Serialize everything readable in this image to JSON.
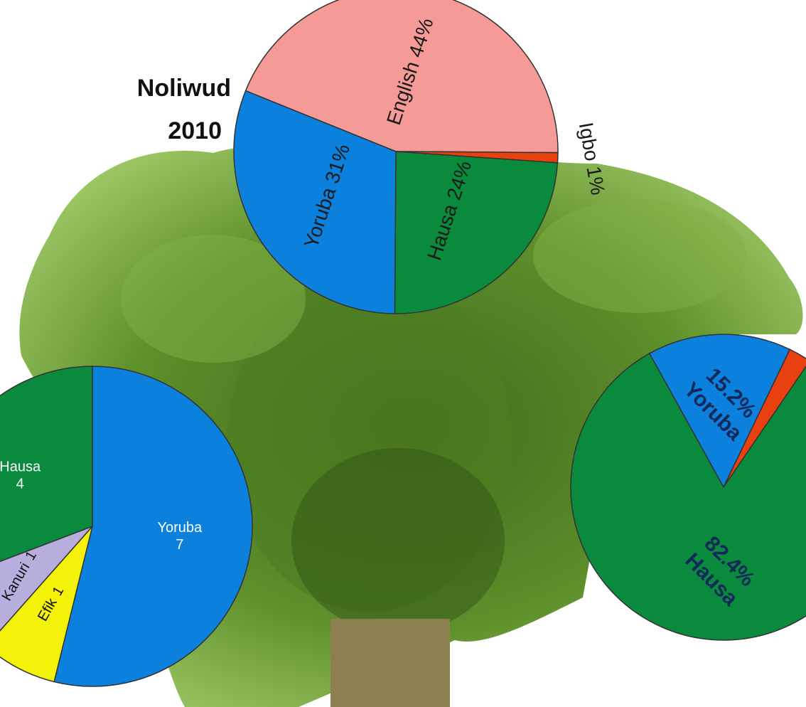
{
  "chart_data": [
    {
      "type": "pie",
      "title": "Noliwud",
      "subtitle": "2010",
      "categories": [
        "English",
        "Igbo",
        "Hausa",
        "Yoruba"
      ],
      "values": [
        44,
        1,
        24,
        31
      ],
      "value_labels": [
        "44%",
        "1%",
        "24%",
        "31%"
      ],
      "colors": [
        "#f59a96",
        "#e8400f",
        "#0a8a3c",
        "#0b80dc"
      ]
    },
    {
      "type": "pie",
      "categories": [
        "Yoruba",
        "Efik",
        "Kanuri",
        "Hausa"
      ],
      "values": [
        7,
        1,
        1,
        4
      ],
      "colors": [
        "#0b80dc",
        "#f5f20a",
        "#b7aede",
        "#0a8a3c"
      ]
    },
    {
      "type": "pie",
      "categories": [
        "Yoruba",
        null,
        "Hausa"
      ],
      "values": [
        15.2,
        2.4,
        82.4
      ],
      "value_labels": [
        "15.2%",
        null,
        "82.4%"
      ],
      "colors": [
        "#0b80dc",
        "#e8400f",
        "#0a8a3c"
      ]
    }
  ]
}
